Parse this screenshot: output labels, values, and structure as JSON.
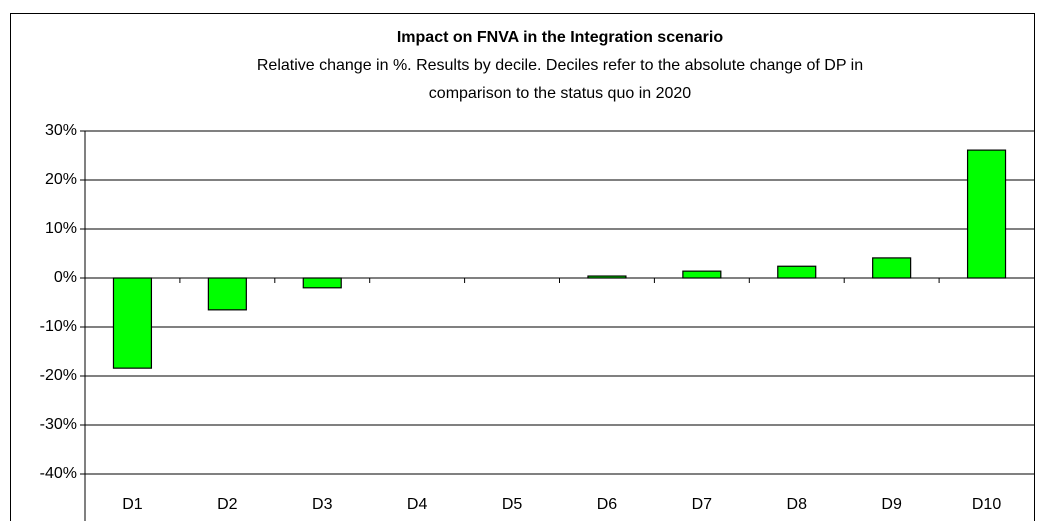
{
  "chart_data": {
    "type": "bar",
    "title": "Impact on FNVA in the Integration scenario",
    "subtitle": [
      "Relative change in %. Results by decile. Deciles refer to the absolute change of DP in",
      "comparison to the status quo in 2020"
    ],
    "categories": [
      "D1",
      "D2",
      "D3",
      "D4",
      "D5",
      "D6",
      "D7",
      "D8",
      "D9",
      "D10"
    ],
    "values": [
      -18.4,
      -6.5,
      -2,
      0,
      0,
      0.4,
      1.4,
      2.4,
      4.1,
      26.1
    ],
    "color": "#00ff00",
    "ylim": [
      -40,
      30
    ],
    "yticks": [
      {
        "value": -40,
        "label": "-40%"
      },
      {
        "value": -30,
        "label": "-30%"
      },
      {
        "value": -20,
        "label": "-20%"
      },
      {
        "value": -10,
        "label": "-10%"
      },
      {
        "value": 0,
        "label": "0%"
      },
      {
        "value": 10,
        "label": "10%"
      },
      {
        "value": 20,
        "label": "20%"
      },
      {
        "value": 30,
        "label": "30%"
      }
    ],
    "grid": true
  }
}
